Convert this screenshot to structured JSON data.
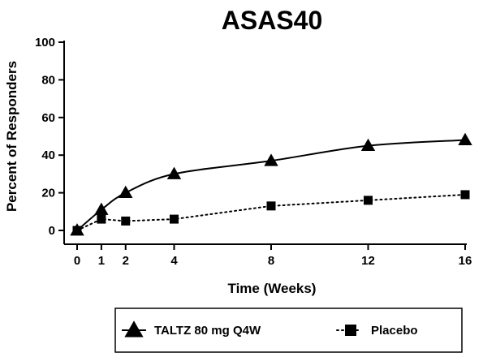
{
  "chart_data": {
    "type": "line",
    "title": "ASAS40",
    "xlabel": "Time (Weeks)",
    "ylabel": "Percent of Responders",
    "x": [
      0,
      1,
      2,
      4,
      8,
      12,
      16
    ],
    "xticks": [
      "0",
      "1",
      "2",
      "4",
      "8",
      "12",
      "16"
    ],
    "yticks": [
      "0",
      "20",
      "40",
      "60",
      "80",
      "100"
    ],
    "xlim": [
      0,
      16
    ],
    "ylim": [
      0,
      100
    ],
    "grid": false,
    "legend_position": "bottom",
    "series": [
      {
        "name": "TALTZ 80 mg Q4W",
        "values": [
          0,
          11,
          20,
          30,
          37,
          45,
          48
        ],
        "marker": "triangle",
        "line_style": "solid",
        "color": "#000000"
      },
      {
        "name": "Placebo",
        "values": [
          0,
          6,
          5,
          6,
          13,
          16,
          19
        ],
        "marker": "square",
        "line_style": "dotted",
        "color": "#000000"
      }
    ]
  }
}
